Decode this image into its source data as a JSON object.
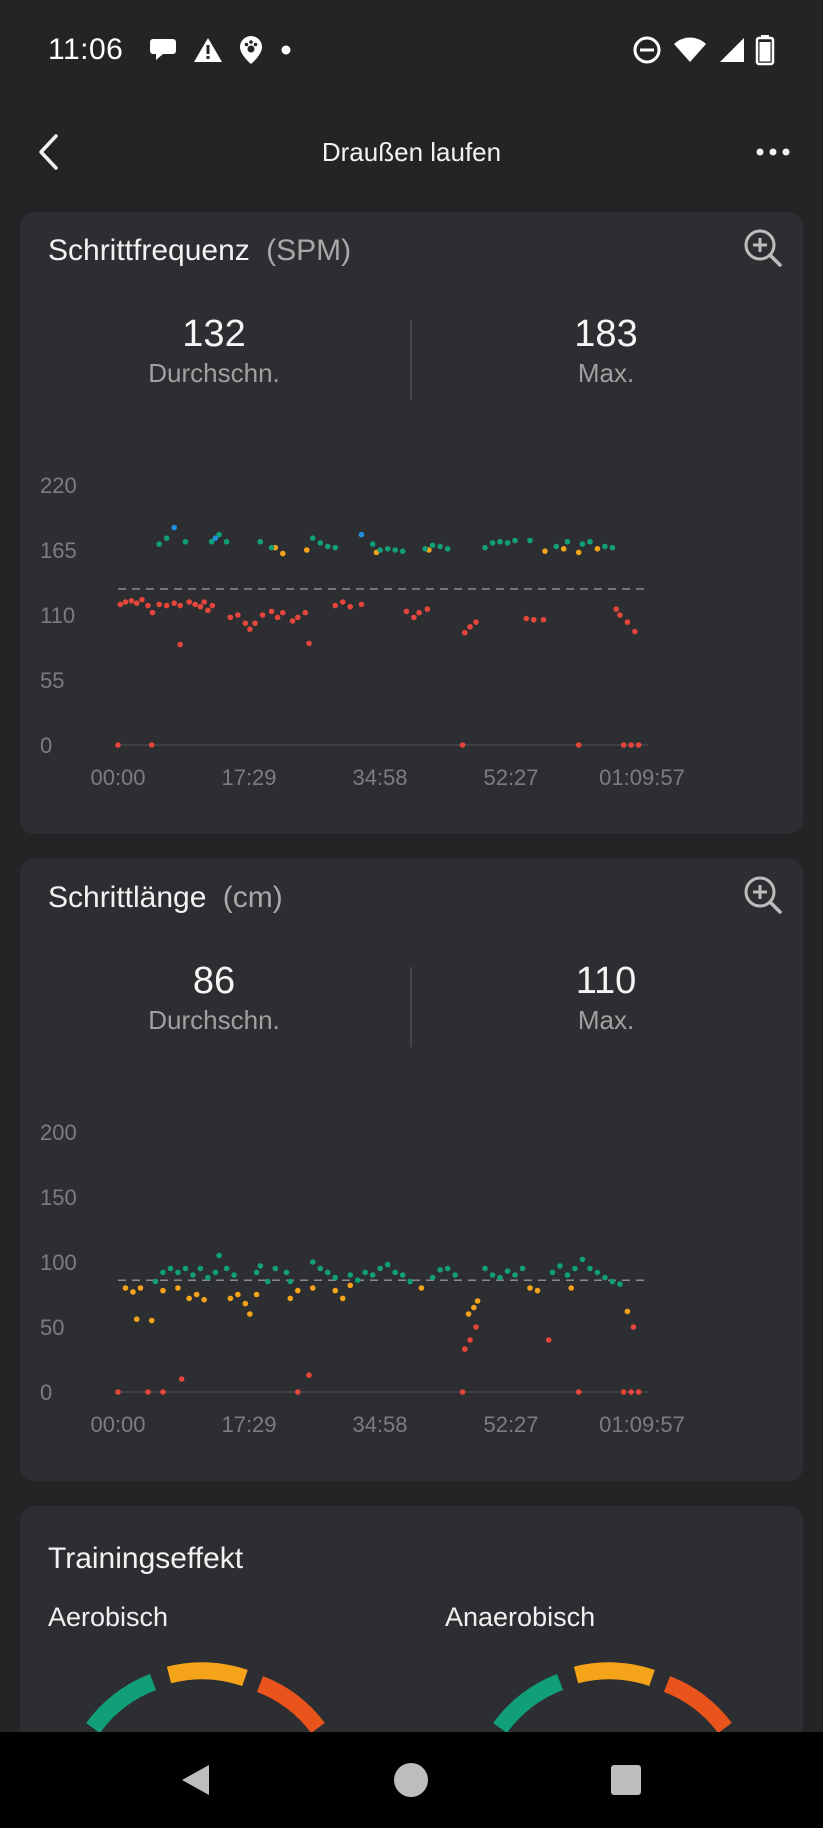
{
  "status_bar": {
    "time": "11:06",
    "left_icons": [
      "chat-bubble-icon",
      "warning-icon",
      "paw-location-icon",
      "dot-icon"
    ],
    "right_icons": [
      "do-not-disturb-icon",
      "wifi-icon",
      "signal-icon",
      "battery-icon"
    ]
  },
  "header": {
    "title": "Draußen laufen",
    "back_icon": "chevron-left-icon",
    "more_icon": "more-horizontal-icon"
  },
  "cadence": {
    "title": "Schrittfrequenz",
    "unit": "(SPM)",
    "avg_value": "132",
    "avg_label": "Durchschn.",
    "max_value": "183",
    "max_label": "Max."
  },
  "stride": {
    "title": "Schrittlänge",
    "unit": "(cm)",
    "avg_value": "86",
    "avg_label": "Durchschn.",
    "max_value": "110",
    "max_label": "Max."
  },
  "training": {
    "title": "Trainingseffekt",
    "aerobic_label": "Aerobisch",
    "anaerobic_label": "Anaerobisch"
  },
  "colors": {
    "red": "#e5463c",
    "orange": "#f5a41a",
    "green": "#109f78",
    "blue": "#1f8fe0",
    "gauge_orange_red": "#e8541c"
  },
  "chart_data": [
    {
      "type": "scatter",
      "x_unit": "time (mm:ss from 00:00 to 01:09:57)",
      "y_ticks": [
        "220",
        "165",
        "110",
        "55",
        "0"
      ],
      "x_ticks": [
        "00:00",
        "17:29",
        "34:58",
        "52:27",
        "01:09:57"
      ],
      "ylim": [
        0,
        220
      ],
      "average_line": 132,
      "series": [
        {
          "color": "#e5463c",
          "points": [
            [
              0,
              0
            ],
            [
              4.5,
              0
            ],
            [
              0.3,
              119
            ],
            [
              1,
              121
            ],
            [
              1.8,
              122
            ],
            [
              2.5,
              120
            ],
            [
              3.2,
              123
            ],
            [
              4,
              118
            ],
            [
              4.6,
              112
            ],
            [
              5.5,
              119
            ],
            [
              6.5,
              118
            ],
            [
              7.5,
              120
            ],
            [
              8.3,
              118
            ],
            [
              8.3,
              85
            ],
            [
              9.5,
              121
            ],
            [
              10.3,
              119
            ],
            [
              11,
              117
            ],
            [
              11.5,
              121
            ],
            [
              12,
              114
            ],
            [
              12.6,
              118
            ],
            [
              15,
              108
            ],
            [
              16,
              110
            ],
            [
              17,
              103
            ],
            [
              17.6,
              98
            ],
            [
              18.3,
              103
            ],
            [
              19.3,
              110
            ],
            [
              20.5,
              113
            ],
            [
              21.3,
              108
            ],
            [
              22,
              112
            ],
            [
              23.3,
              105
            ],
            [
              24,
              108
            ],
            [
              25,
              112
            ],
            [
              25.5,
              86
            ],
            [
              29,
              118
            ],
            [
              30,
              121
            ],
            [
              31,
              117
            ],
            [
              32.5,
              119
            ],
            [
              38.5,
              113
            ],
            [
              39.5,
              108
            ],
            [
              40.2,
              112
            ],
            [
              41.3,
              115
            ],
            [
              46,
              0
            ],
            [
              46.3,
              95
            ],
            [
              47,
              100
            ],
            [
              47.8,
              104
            ],
            [
              54.5,
              107
            ],
            [
              55.5,
              106
            ],
            [
              56.8,
              106
            ],
            [
              61.5,
              0
            ],
            [
              67.5,
              0
            ],
            [
              68.5,
              0
            ],
            [
              69.5,
              0
            ],
            [
              66.5,
              115
            ],
            [
              67,
              110
            ],
            [
              68,
              104
            ],
            [
              69,
              96
            ]
          ]
        },
        {
          "color": "#f5a41a",
          "points": [
            [
              25.2,
              165
            ],
            [
              21,
              167
            ],
            [
              22,
              162
            ],
            [
              34.5,
              163
            ],
            [
              41.5,
              165
            ],
            [
              57,
              164
            ],
            [
              59.5,
              166
            ],
            [
              61.5,
              163
            ],
            [
              64,
              166
            ]
          ]
        },
        {
          "color": "#109f78",
          "points": [
            [
              5.5,
              170
            ],
            [
              6.5,
              175
            ],
            [
              9,
              172
            ],
            [
              12.5,
              172
            ],
            [
              13.5,
              178
            ],
            [
              14.5,
              172
            ],
            [
              19,
              172
            ],
            [
              20.5,
              167
            ],
            [
              26,
              175
            ],
            [
              27,
              171
            ],
            [
              28,
              168
            ],
            [
              29,
              167
            ],
            [
              34,
              170
            ],
            [
              35,
              165
            ],
            [
              36,
              166
            ],
            [
              37,
              165
            ],
            [
              38,
              164
            ],
            [
              41,
              166
            ],
            [
              42,
              169
            ],
            [
              43,
              168
            ],
            [
              44,
              166
            ],
            [
              49,
              167
            ],
            [
              50,
              171
            ],
            [
              51,
              172
            ],
            [
              52,
              171
            ],
            [
              53,
              173
            ],
            [
              55,
              173
            ],
            [
              58.5,
              168
            ],
            [
              60,
              172
            ],
            [
              62,
              170
            ],
            [
              63,
              172
            ],
            [
              65,
              168
            ],
            [
              66,
              167
            ]
          ]
        },
        {
          "color": "#1f8fe0",
          "points": [
            [
              7.5,
              184
            ],
            [
              32.5,
              178
            ],
            [
              13,
              175
            ]
          ]
        }
      ]
    },
    {
      "type": "scatter",
      "x_unit": "time (mm:ss from 00:00 to 01:09:57)",
      "y_ticks": [
        "200",
        "150",
        "100",
        "50",
        "0"
      ],
      "x_ticks": [
        "00:00",
        "17:29",
        "34:58",
        "52:27",
        "01:09:57"
      ],
      "ylim": [
        0,
        200
      ],
      "average_line": 86,
      "series": [
        {
          "color": "#e5463c",
          "points": [
            [
              0,
              0
            ],
            [
              4,
              0
            ],
            [
              6,
              0
            ],
            [
              8.5,
              10
            ],
            [
              24,
              0
            ],
            [
              25.5,
              13
            ],
            [
              46,
              0
            ],
            [
              46.3,
              33
            ],
            [
              47,
              40
            ],
            [
              47.8,
              50
            ],
            [
              57.5,
              40
            ],
            [
              61.5,
              0
            ],
            [
              67.5,
              0
            ],
            [
              68.5,
              0
            ],
            [
              69.5,
              0
            ],
            [
              68.8,
              50
            ]
          ]
        },
        {
          "color": "#f5a41a",
          "points": [
            [
              1,
              80
            ],
            [
              2,
              77
            ],
            [
              3,
              80
            ],
            [
              2.5,
              56
            ],
            [
              4.5,
              55
            ],
            [
              6,
              78
            ],
            [
              8,
              80
            ],
            [
              9.5,
              72
            ],
            [
              10.5,
              75
            ],
            [
              11.5,
              71
            ],
            [
              15,
              72
            ],
            [
              16,
              75
            ],
            [
              17,
              68
            ],
            [
              17.6,
              60
            ],
            [
              18.5,
              75
            ],
            [
              23,
              72
            ],
            [
              24,
              78
            ],
            [
              26,
              80
            ],
            [
              29,
              78
            ],
            [
              30,
              72
            ],
            [
              31,
              82
            ],
            [
              40.5,
              80
            ],
            [
              46.8,
              60
            ],
            [
              47.5,
              65
            ],
            [
              48,
              70
            ],
            [
              55,
              80
            ],
            [
              56,
              78
            ],
            [
              60.5,
              80
            ],
            [
              68,
              62
            ]
          ]
        },
        {
          "color": "#109f78",
          "points": [
            [
              5,
              85
            ],
            [
              6,
              92
            ],
            [
              7,
              95
            ],
            [
              8,
              92
            ],
            [
              9,
              95
            ],
            [
              10,
              90
            ],
            [
              11,
              95
            ],
            [
              12,
              88
            ],
            [
              13,
              92
            ],
            [
              13.5,
              105
            ],
            [
              14.5,
              95
            ],
            [
              15.5,
              90
            ],
            [
              18.5,
              92
            ],
            [
              19,
              97
            ],
            [
              20,
              85
            ],
            [
              21,
              95
            ],
            [
              22.5,
              92
            ],
            [
              23,
              85
            ],
            [
              26,
              100
            ],
            [
              27,
              95
            ],
            [
              28,
              92
            ],
            [
              29,
              88
            ],
            [
              31,
              90
            ],
            [
              32,
              86
            ],
            [
              33,
              92
            ],
            [
              34,
              90
            ],
            [
              35,
              95
            ],
            [
              36,
              98
            ],
            [
              37,
              92
            ],
            [
              38,
              90
            ],
            [
              39,
              85
            ],
            [
              42,
              88
            ],
            [
              43,
              94
            ],
            [
              44,
              95
            ],
            [
              45,
              90
            ],
            [
              49,
              95
            ],
            [
              50,
              90
            ],
            [
              51,
              88
            ],
            [
              52,
              93
            ],
            [
              53,
              90
            ],
            [
              54,
              95
            ],
            [
              58,
              92
            ],
            [
              59,
              97
            ],
            [
              60,
              90
            ],
            [
              61,
              95
            ],
            [
              62,
              102
            ],
            [
              63,
              95
            ],
            [
              64,
              92
            ],
            [
              65,
              88
            ],
            [
              66,
              85
            ],
            [
              67,
              83
            ]
          ]
        }
      ]
    }
  ]
}
